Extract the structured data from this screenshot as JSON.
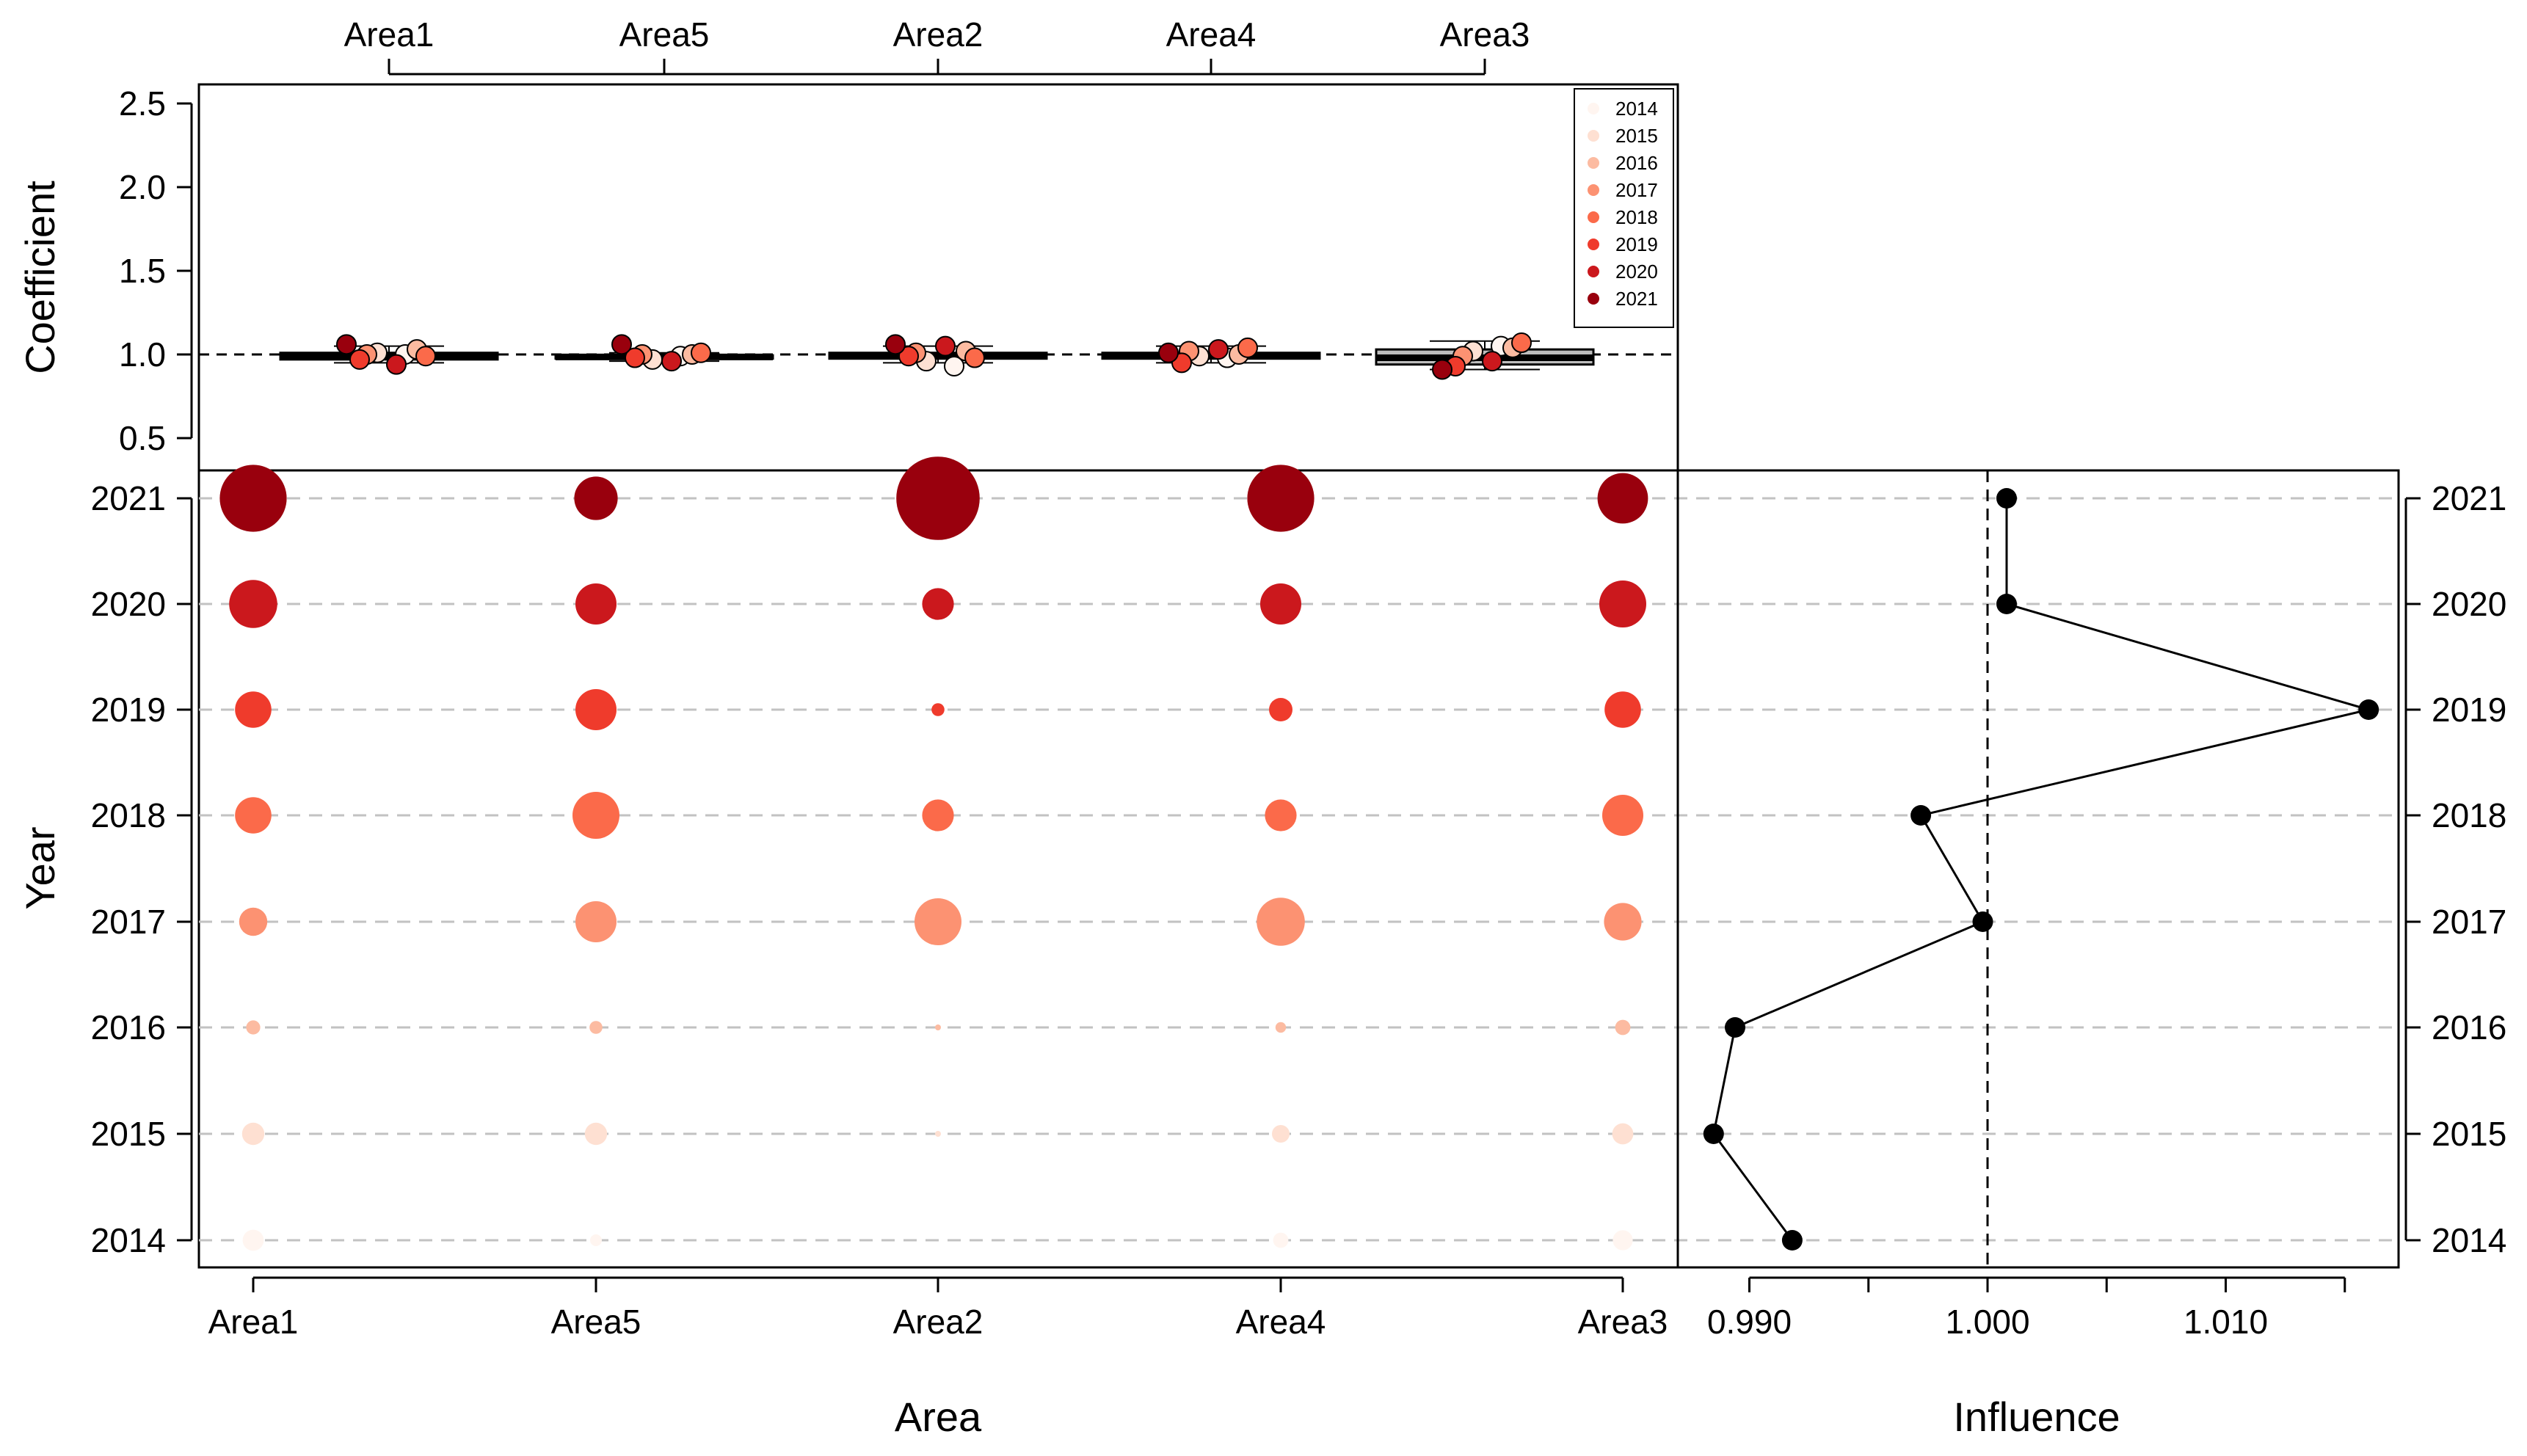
{
  "chart_data": [
    {
      "id": "coef-boxplot",
      "type": "boxplot-with-points",
      "ylabel": "Coefficient",
      "ylim": [
        0.3,
        2.6
      ],
      "yticks": [
        0.5,
        1.0,
        1.5,
        2.0,
        2.5
      ],
      "ytick_labels": [
        "0.5",
        "1.0",
        "1.5",
        "2.0",
        "2.5"
      ],
      "reference_line": 1.0,
      "categories": [
        "Area1",
        "Area5",
        "Area2",
        "Area4",
        "Area3"
      ],
      "boxes": [
        {
          "area": "Area1",
          "whisker_low": 0.95,
          "q1": 0.97,
          "median": 0.985,
          "q3": 1.01,
          "whisker_high": 1.05
        },
        {
          "area": "Area5",
          "whisker_low": 0.96,
          "q1": 0.975,
          "median": 0.985,
          "q3": 0.995,
          "whisker_high": 1.01
        },
        {
          "area": "Area2",
          "whisker_low": 0.95,
          "q1": 0.975,
          "median": 0.99,
          "q3": 1.01,
          "whisker_high": 1.05
        },
        {
          "area": "Area4",
          "whisker_low": 0.95,
          "q1": 0.975,
          "median": 0.99,
          "q3": 1.01,
          "whisker_high": 1.05
        },
        {
          "area": "Area3",
          "whisker_low": 0.91,
          "q1": 0.94,
          "median": 0.98,
          "q3": 1.03,
          "whisker_high": 1.08
        }
      ],
      "points": [
        {
          "area": "Area1",
          "values": [
            1.0,
            1.01,
            1.03,
            1.0,
            0.99,
            0.97,
            0.94,
            1.06
          ]
        },
        {
          "area": "Area5",
          "values": [
            0.99,
            0.97,
            1.0,
            1.0,
            1.01,
            0.98,
            0.96,
            1.06
          ]
        },
        {
          "area": "Area2",
          "values": [
            0.93,
            0.96,
            1.02,
            1.01,
            0.98,
            0.99,
            1.05,
            1.06
          ]
        },
        {
          "area": "Area4",
          "values": [
            0.98,
            0.99,
            1.0,
            1.02,
            1.04,
            0.95,
            1.03,
            1.01
          ]
        },
        {
          "area": "Area3",
          "values": [
            1.05,
            1.02,
            1.04,
            0.99,
            1.07,
            0.93,
            0.96,
            0.91
          ]
        }
      ],
      "legend": {
        "title": "",
        "placement": "top-right",
        "entries": [
          "2014",
          "2015",
          "2016",
          "2017",
          "2018",
          "2019",
          "2020",
          "2021"
        ]
      }
    },
    {
      "id": "area-year-bubbles",
      "type": "bubble",
      "xlabel": "Area",
      "ylabel": "Year",
      "categories": [
        "Area1",
        "Area5",
        "Area2",
        "Area4",
        "Area3"
      ],
      "years": [
        "2014",
        "2015",
        "2016",
        "2017",
        "2018",
        "2019",
        "2020",
        "2021"
      ],
      "size_note": "relative bubble size (0-1)",
      "sizes": {
        "Area1": [
          0.18,
          0.19,
          0.12,
          0.24,
          0.31,
          0.31,
          0.41,
          0.57
        ],
        "Area5": [
          0.1,
          0.19,
          0.11,
          0.35,
          0.4,
          0.35,
          0.35,
          0.37
        ],
        "Area2": [
          0.0,
          0.05,
          0.05,
          0.4,
          0.27,
          0.11,
          0.27,
          0.71
        ],
        "Area4": [
          0.13,
          0.15,
          0.09,
          0.41,
          0.27,
          0.2,
          0.35,
          0.57
        ],
        "Area3": [
          0.17,
          0.18,
          0.13,
          0.32,
          0.35,
          0.31,
          0.4,
          0.43
        ]
      },
      "year_colors": [
        "#fff5f0",
        "#fee0d2",
        "#fcbba1",
        "#fc9272",
        "#fb6a4a",
        "#ef3b2c",
        "#cb181d",
        "#99000d"
      ]
    },
    {
      "id": "influence",
      "type": "line",
      "xlabel": "Influence",
      "xlim": [
        0.9875,
        1.0165
      ],
      "xticks": [
        0.99,
        0.995,
        1.0,
        1.005,
        1.01,
        1.015
      ],
      "xtick_labels": [
        "0.990",
        "",
        "1.000",
        "",
        "1.010",
        ""
      ],
      "reference_line": 1.0,
      "y": [
        "2014",
        "2015",
        "2016",
        "2017",
        "2018",
        "2019",
        "2020",
        "2021"
      ],
      "x": [
        0.9918,
        0.9885,
        0.9894,
        0.9998,
        0.9972,
        1.016,
        1.0008,
        1.0008
      ]
    }
  ]
}
